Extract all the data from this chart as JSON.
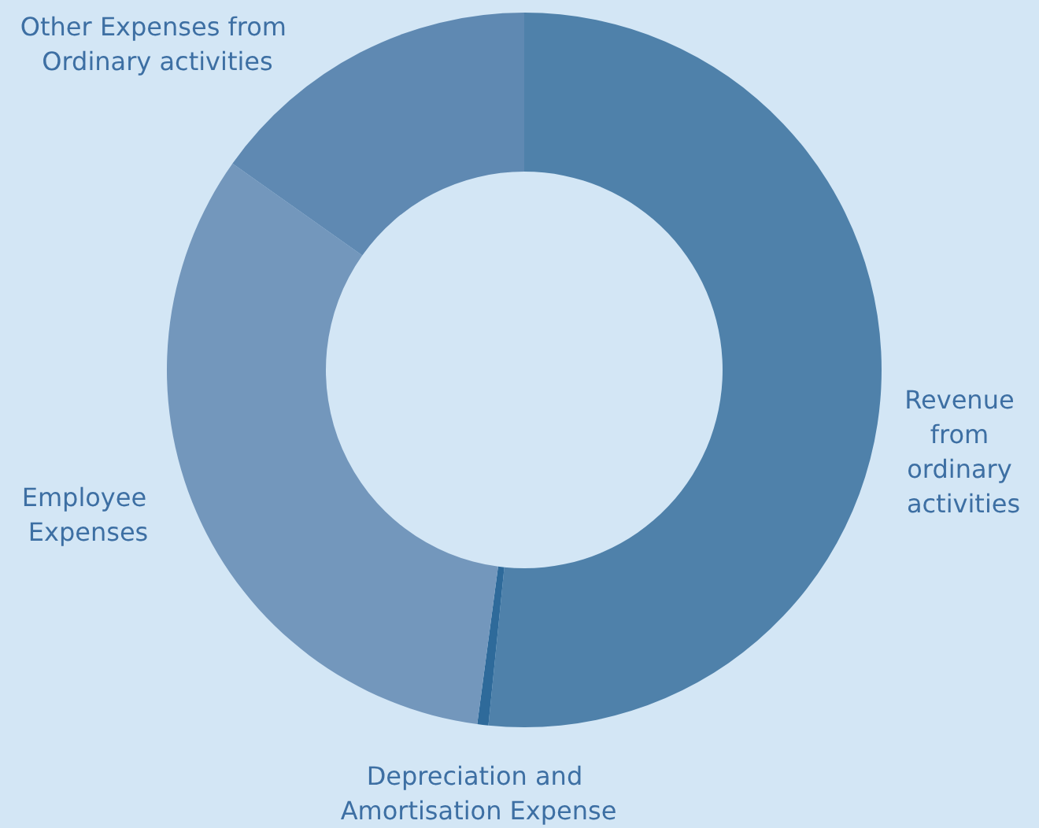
{
  "chart_data": {
    "type": "donut",
    "categories": [
      "Revenue from ordinary activities",
      "Depreciation and Amortisation Expense",
      "Employee Expenses",
      "Other Expenses from Ordinary activities"
    ],
    "values": [
      51.6,
      0.5,
      32.7,
      15.2
    ],
    "colors": [
      "#4f81aa",
      "#2e6a9a",
      "#7397bc",
      "#5f89b2"
    ],
    "legend": false
  }
}
